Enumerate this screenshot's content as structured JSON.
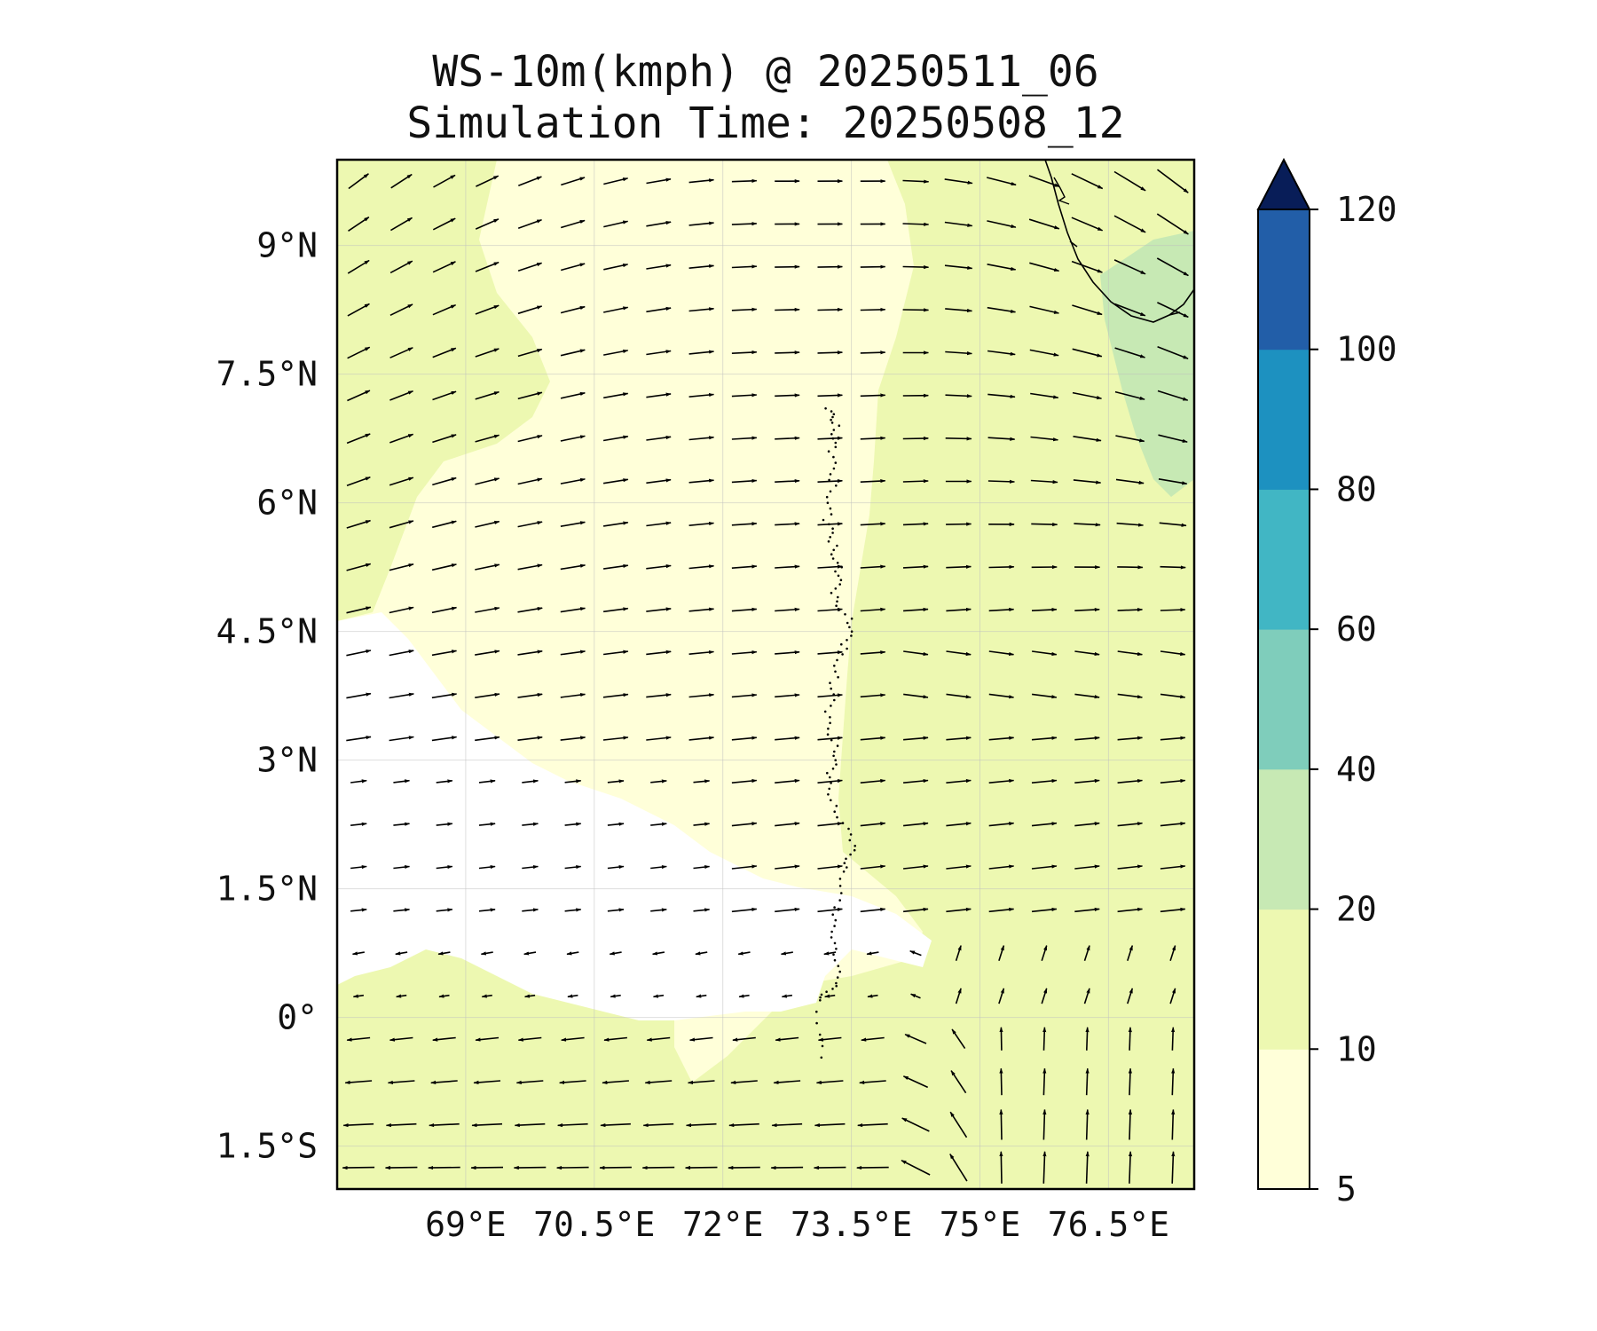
{
  "title": {
    "line1": "WS-10m(kmph) @ 20250511_06",
    "line2": "Simulation Time: 20250508_12"
  },
  "map": {
    "lon_range": [
      67.5,
      77.5
    ],
    "lat_range": [
      -2.0,
      10.0
    ],
    "lon_ticks": [
      {
        "value": 69.0,
        "label": "69°E"
      },
      {
        "value": 70.5,
        "label": "70.5°E"
      },
      {
        "value": 72.0,
        "label": "72°E"
      },
      {
        "value": 73.5,
        "label": "73.5°E"
      },
      {
        "value": 75.0,
        "label": "75°E"
      },
      {
        "value": 76.5,
        "label": "76.5°E"
      }
    ],
    "lat_ticks": [
      {
        "value": 9.0,
        "label": "9°N"
      },
      {
        "value": 7.5,
        "label": "7.5°N"
      },
      {
        "value": 6.0,
        "label": "6°N"
      },
      {
        "value": 4.5,
        "label": "4.5°N"
      },
      {
        "value": 3.0,
        "label": "3°N"
      },
      {
        "value": 1.5,
        "label": "1.5°N"
      },
      {
        "value": 0.0,
        "label": "0°"
      },
      {
        "value": -1.5,
        "label": "1.5°S"
      }
    ],
    "grid": true,
    "vector_spacing_deg": 0.5
  },
  "colorbar": {
    "ticks": [
      "5",
      "10",
      "20",
      "40",
      "60",
      "80",
      "100",
      "120"
    ],
    "levels": [
      5,
      10,
      20,
      40,
      60,
      80,
      100,
      120
    ],
    "colors": [
      "#ffffd9",
      "#edf8b1",
      "#c7e9b4",
      "#7fcdbb",
      "#41b6c4",
      "#1d91c0",
      "#225ea8",
      "#0c2c84"
    ],
    "extend_color": "#081d58",
    "extend": "max"
  },
  "chart_data": {
    "type": "filled-contour-with-wind-vectors",
    "variable": "WS-10m(kmph)",
    "valid_time": "20250511_06",
    "simulation_time": "20250508_12",
    "speed_regions_kmph": [
      {
        "region": "western equatorial band (67.5-75E, 0.3-3N)",
        "range": "<5"
      },
      {
        "region": "most of domain",
        "range": "5-10"
      },
      {
        "region": "eastern half and far south",
        "range": "10-20"
      },
      {
        "region": "east of 76.5E, 6.5-8.5N",
        "range": "20-40"
      }
    ],
    "wind_direction_regions": [
      {
        "region": "north-west (>7.5N, <72E)",
        "flow": "toward north-east"
      },
      {
        "region": "central north (3-7.5N)",
        "flow": "toward east"
      },
      {
        "region": "north-east (>6N, >74.5E)",
        "flow": "toward south-east"
      },
      {
        "region": "south-east (<1.5N, >74.5E)",
        "flow": "toward north"
      },
      {
        "region": "south-west (<0.5N, <73E)",
        "flow": "toward west"
      }
    ]
  }
}
